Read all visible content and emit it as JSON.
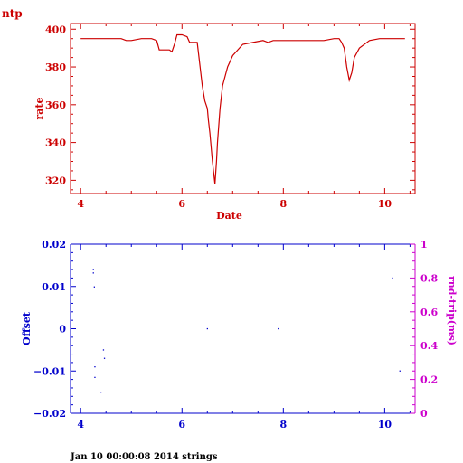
{
  "page_label": "ntp",
  "footer_text": "Jan 10 00:00:08 2014 strings",
  "chart_data": [
    {
      "type": "line",
      "color": "#cc0000",
      "xlabel": "Date",
      "ylabel": "rate",
      "xlim": [
        3.8,
        10.6
      ],
      "ylim": [
        313,
        403
      ],
      "x_ticks": [
        4,
        6,
        8,
        10
      ],
      "y_ticks": [
        320,
        340,
        360,
        380,
        400
      ],
      "grid": false,
      "series": [
        {
          "x": [
            4.0,
            4.3,
            4.6,
            4.8,
            4.9,
            5.0,
            5.2,
            5.4,
            5.5,
            5.55,
            5.65,
            5.75,
            5.8,
            5.85,
            5.9,
            6.0,
            6.1,
            6.15,
            6.2,
            6.3,
            6.4,
            6.45,
            6.5,
            6.52,
            6.55,
            6.6,
            6.65,
            6.68,
            6.7,
            6.75,
            6.8,
            6.9,
            7.0,
            7.2,
            7.4,
            7.6,
            7.7,
            7.8,
            8.0,
            8.5,
            8.7,
            8.8,
            9.0,
            9.1,
            9.15,
            9.2,
            9.25,
            9.3,
            9.35,
            9.4,
            9.5,
            9.7,
            9.9,
            10.2,
            10.4
          ],
          "y": [
            395,
            395,
            395,
            395,
            394,
            394,
            395,
            395,
            394,
            389,
            389,
            389,
            388,
            392,
            397,
            397,
            396,
            393,
            393,
            393,
            370,
            362,
            358,
            352,
            345,
            330,
            318,
            330,
            340,
            358,
            370,
            380,
            386,
            392,
            393,
            394,
            393,
            394,
            394,
            394,
            394,
            394,
            395,
            395,
            393,
            390,
            380,
            373,
            377,
            385,
            390,
            394,
            395,
            395,
            395
          ]
        }
      ]
    },
    {
      "type": "scatter",
      "color": "#0000cc",
      "xlabel": "",
      "ylabel": "Offset",
      "y2label": "rnd-trip(ms)",
      "y2color": "#cc00cc",
      "xlim": [
        3.8,
        10.6
      ],
      "ylim": [
        -0.02,
        0.02
      ],
      "y2lim": [
        0,
        1
      ],
      "x_ticks": [
        4,
        6,
        8,
        10
      ],
      "y_ticks": [
        -0.02,
        -0.01,
        0,
        0.01,
        0.02
      ],
      "y_tick_labels": [
        "−0.02",
        "−0.01",
        "0",
        "0.01",
        "0.02"
      ],
      "y2_ticks": [
        0,
        0.2,
        0.4,
        0.6,
        0.8,
        1
      ],
      "y2_tick_labels": [
        "0",
        "0.2",
        "0.4",
        "0.6",
        "0.8",
        "1"
      ],
      "grid": false,
      "series": [
        {
          "x": [
            4.25,
            4.25,
            4.27,
            4.28,
            4.28,
            4.4,
            4.45,
            4.47,
            6.5,
            7.9,
            10.15,
            10.3
          ],
          "y": [
            0.014,
            0.0132,
            0.0099,
            -0.009,
            -0.0115,
            -0.015,
            -0.005,
            -0.007,
            0,
            0,
            0.012,
            -0.01
          ]
        }
      ]
    }
  ]
}
